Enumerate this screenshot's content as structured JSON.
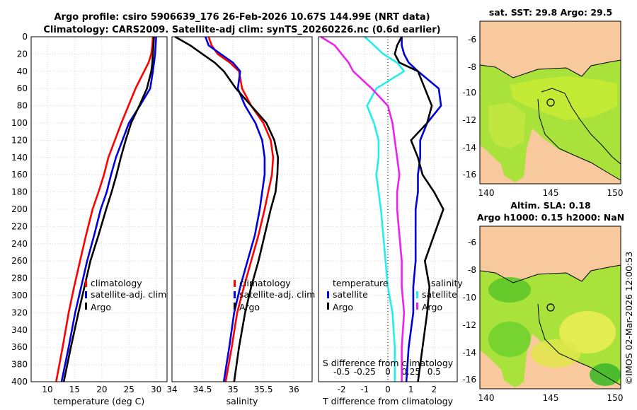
{
  "figure": {
    "title_line1": "Argo profile: csiro 5906639_176 26-Feb-2026 10.67S 144.99E (NRT data)",
    "title_line2": "Climatology: CARS2009. Satellite-adj clim: synTS_20260226.nc (0.6d earlier)",
    "footer": "©IMOS 02-Mar-2026 12:00:53"
  },
  "colors": {
    "climatology": "#ff0000",
    "satellite": "#0000dd",
    "argo": "#000000",
    "sat_salinity": "#22eeee",
    "argo_salinity": "#ee22ee",
    "land": "#f7c99c",
    "grid": "#d9d9d9"
  },
  "chart_data": [
    {
      "id": "temperature",
      "type": "line",
      "xlabel": "temperature (deg C)",
      "xlim": [
        7,
        32
      ],
      "xticks": [
        10,
        15,
        20,
        25,
        30
      ],
      "ylim": [
        0,
        400
      ],
      "yticks": [
        0,
        20,
        40,
        60,
        80,
        100,
        120,
        140,
        160,
        180,
        200,
        220,
        240,
        260,
        280,
        300,
        320,
        340,
        360,
        380,
        400
      ],
      "grid": true,
      "legend": [
        "climatology",
        "satellite-adj. clim",
        "Argo"
      ],
      "series": [
        {
          "name": "climatology",
          "color_key": "climatology",
          "x": [
            29.4,
            29.3,
            29.1,
            28.6,
            27.8,
            26.2,
            24.9,
            23.6,
            22.4,
            21.2,
            20.4,
            19.4,
            18.3,
            17.1,
            16.0,
            14.9,
            13.9,
            12.8,
            11.6
          ],
          "y": [
            0,
            10,
            20,
            30,
            40,
            60,
            80,
            100,
            120,
            140,
            160,
            180,
            200,
            230,
            260,
            290,
            320,
            360,
            400
          ]
        },
        {
          "name": "satellite-adj. clim",
          "color_key": "satellite",
          "x": [
            30.0,
            29.9,
            29.8,
            29.6,
            29.4,
            28.9,
            27.0,
            25.0,
            23.8,
            22.6,
            21.7,
            20.9,
            19.8,
            18.6,
            17.3,
            16.2,
            15.1,
            13.9,
            12.6
          ],
          "y": [
            0,
            10,
            20,
            30,
            40,
            60,
            80,
            100,
            120,
            140,
            160,
            180,
            200,
            230,
            260,
            290,
            320,
            360,
            400
          ]
        },
        {
          "name": "Argo",
          "color_key": "argo",
          "x": [
            29.6,
            29.5,
            29.4,
            29.3,
            29.1,
            28.3,
            26.9,
            25.4,
            24.4,
            23.5,
            22.7,
            21.8,
            20.8,
            19.4,
            17.9,
            16.8,
            15.7,
            14.3,
            13.0
          ],
          "y": [
            0,
            10,
            20,
            30,
            40,
            60,
            80,
            100,
            120,
            140,
            160,
            180,
            200,
            230,
            260,
            290,
            320,
            360,
            400
          ]
        }
      ]
    },
    {
      "id": "salinity",
      "type": "line",
      "xlabel": "salinity",
      "xlim": [
        34,
        36.3
      ],
      "xticks": [
        34,
        34.5,
        35,
        35.5,
        36
      ],
      "ylim": [
        0,
        400
      ],
      "grid": true,
      "legend": [
        "climatology",
        "satellite-adj. clim",
        "Argo"
      ],
      "series": [
        {
          "name": "climatology",
          "color_key": "climatology",
          "x": [
            34.6,
            34.65,
            34.75,
            34.95,
            35.1,
            35.15,
            35.3,
            35.5,
            35.62,
            35.66,
            35.64,
            35.58,
            35.52,
            35.42,
            35.3,
            35.18,
            35.07,
            34.98,
            34.88
          ],
          "y": [
            0,
            10,
            20,
            30,
            40,
            60,
            80,
            100,
            120,
            140,
            160,
            180,
            200,
            230,
            260,
            290,
            320,
            360,
            400
          ]
        },
        {
          "name": "satellite-adj. clim",
          "color_key": "satellite",
          "x": [
            34.55,
            34.6,
            34.8,
            35.0,
            35.12,
            35.08,
            35.2,
            35.37,
            35.48,
            35.52,
            35.52,
            35.48,
            35.44,
            35.36,
            35.24,
            35.12,
            35.02,
            34.94,
            34.85
          ],
          "y": [
            0,
            10,
            20,
            30,
            40,
            60,
            80,
            100,
            120,
            140,
            160,
            180,
            200,
            230,
            260,
            290,
            320,
            360,
            400
          ]
        },
        {
          "name": "Argo",
          "color_key": "argo",
          "x": [
            34.05,
            34.3,
            34.5,
            34.7,
            34.85,
            35.05,
            35.3,
            35.55,
            35.68,
            35.74,
            35.73,
            35.7,
            35.62,
            35.52,
            35.42,
            35.3,
            35.2,
            35.1,
            35.02
          ],
          "y": [
            0,
            10,
            20,
            30,
            40,
            60,
            80,
            100,
            120,
            140,
            160,
            180,
            200,
            230,
            260,
            290,
            320,
            360,
            400
          ]
        }
      ]
    },
    {
      "id": "differences",
      "type": "line",
      "xlabel": "T difference from climatology",
      "xlim": [
        -3,
        3
      ],
      "xticks": [
        -2,
        -1,
        0,
        1,
        2
      ],
      "top_xlabel": "S difference from climatology",
      "top_ticklabels": [
        "-0.5",
        "-0.25",
        "0",
        "0.25",
        "0.5"
      ],
      "top_xticks": [
        -2,
        -1,
        0,
        1,
        2
      ],
      "ylim": [
        0,
        400
      ],
      "grid": true,
      "legend_temperature_title": "temperature",
      "legend_salinity_title": "salinity",
      "legend_temperature": [
        "satellite",
        "Argo"
      ],
      "legend_salinity": [
        "satellite",
        "Argo"
      ],
      "series": [
        {
          "name": "T satellite",
          "color_key": "satellite",
          "x": [
            0.6,
            0.6,
            0.7,
            0.9,
            1.3,
            2.2,
            2.3,
            1.7,
            1.4,
            1.4,
            1.3,
            1.3,
            1.2,
            1.2,
            1.2,
            1.1,
            1.1,
            0.9,
            0.8
          ],
          "y": [
            0,
            10,
            20,
            30,
            40,
            60,
            80,
            100,
            120,
            140,
            160,
            180,
            200,
            230,
            260,
            290,
            320,
            360,
            400
          ]
        },
        {
          "name": "T Argo",
          "color_key": "argo",
          "x": [
            0.6,
            0.4,
            0.3,
            0.5,
            1.3,
            1.6,
            1.9,
            1.7,
            1.0,
            1.3,
            1.5,
            2.0,
            2.4,
            2.0,
            1.6,
            1.8,
            1.7,
            1.5,
            1.3
          ],
          "y": [
            0,
            10,
            20,
            30,
            40,
            60,
            80,
            100,
            120,
            140,
            160,
            180,
            200,
            230,
            260,
            290,
            320,
            360,
            400
          ]
        },
        {
          "name": "S satellite",
          "color_key": "sat_salinity",
          "x": [
            -1.0,
            -0.6,
            -0.2,
            0.4,
            0.7,
            -0.5,
            -0.9,
            -0.6,
            -0.4,
            -0.4,
            -0.5,
            -0.4,
            -0.3,
            -0.2,
            -0.1,
            0.0,
            0.2,
            0.3,
            0.3
          ],
          "y": [
            0,
            10,
            20,
            30,
            40,
            60,
            80,
            100,
            120,
            140,
            160,
            180,
            200,
            230,
            260,
            290,
            320,
            360,
            400
          ]
        },
        {
          "name": "S Argo",
          "color_key": "argo_salinity",
          "x": [
            -2.9,
            -2.3,
            -2.0,
            -1.7,
            -1.5,
            -0.7,
            0.0,
            0.2,
            0.3,
            0.4,
            0.5,
            0.4,
            0.4,
            0.5,
            0.6,
            0.6,
            0.7,
            0.6,
            0.6
          ],
          "y": [
            0,
            10,
            20,
            30,
            40,
            60,
            80,
            100,
            120,
            140,
            160,
            180,
            200,
            230,
            260,
            290,
            320,
            360,
            400
          ]
        }
      ]
    }
  ],
  "maps": [
    {
      "id": "sst-map",
      "title": "sat. SST: 29.8 Argo: 29.5",
      "xticks": [
        "140",
        "145",
        "150"
      ],
      "yticks": [
        "-6",
        "-8",
        "-10",
        "-12",
        "-14",
        "-16"
      ],
      "float_lon": 145.0,
      "float_lat": -10.67
    },
    {
      "id": "sla-map",
      "title_line1": "Altim. SLA: 0.18",
      "title_line2": "Argo h1000: 0.15 h2000: NaN",
      "xticks": [
        "140",
        "145",
        "150"
      ],
      "yticks": [
        "-6",
        "-8",
        "-10",
        "-12",
        "-14",
        "-16"
      ],
      "float_lon": 145.0,
      "float_lat": -10.67
    }
  ]
}
